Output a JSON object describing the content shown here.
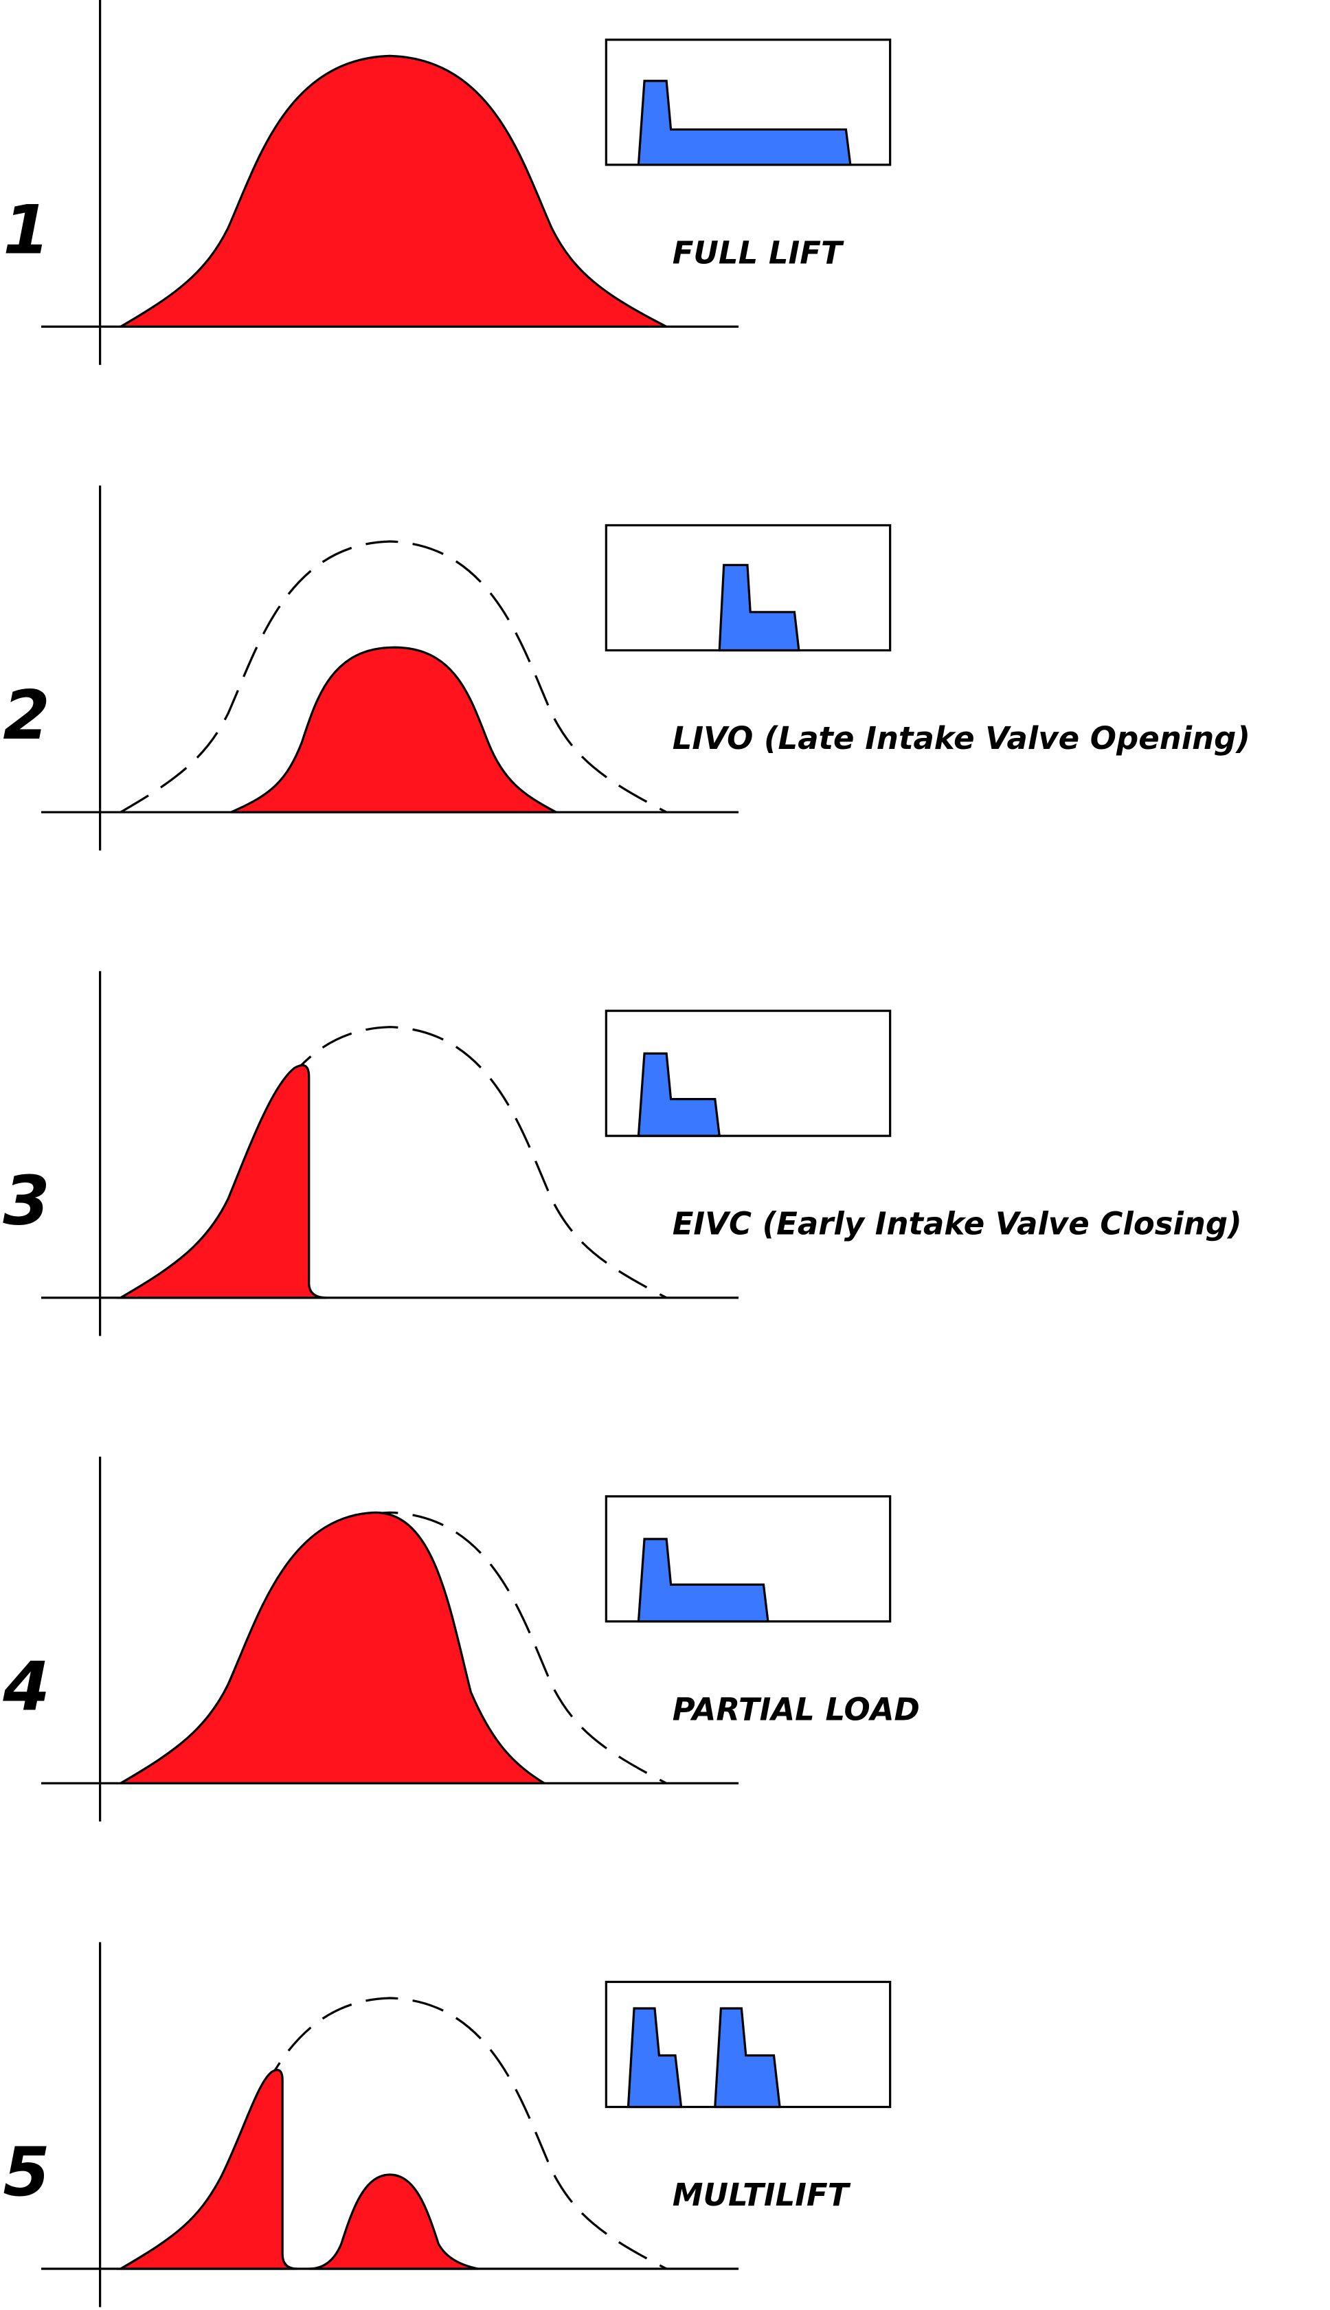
{
  "panels": [
    {
      "number": "1",
      "label": "FULL LIFT"
    },
    {
      "number": "2",
      "label": "LIVO (Late Intake Valve Opening)"
    },
    {
      "number": "3",
      "label": "EIVC (Early Intake Valve Closing)"
    },
    {
      "number": "4",
      "label": "PARTIAL LOAD"
    },
    {
      "number": "5",
      "label": "MULTILIFT"
    }
  ]
}
